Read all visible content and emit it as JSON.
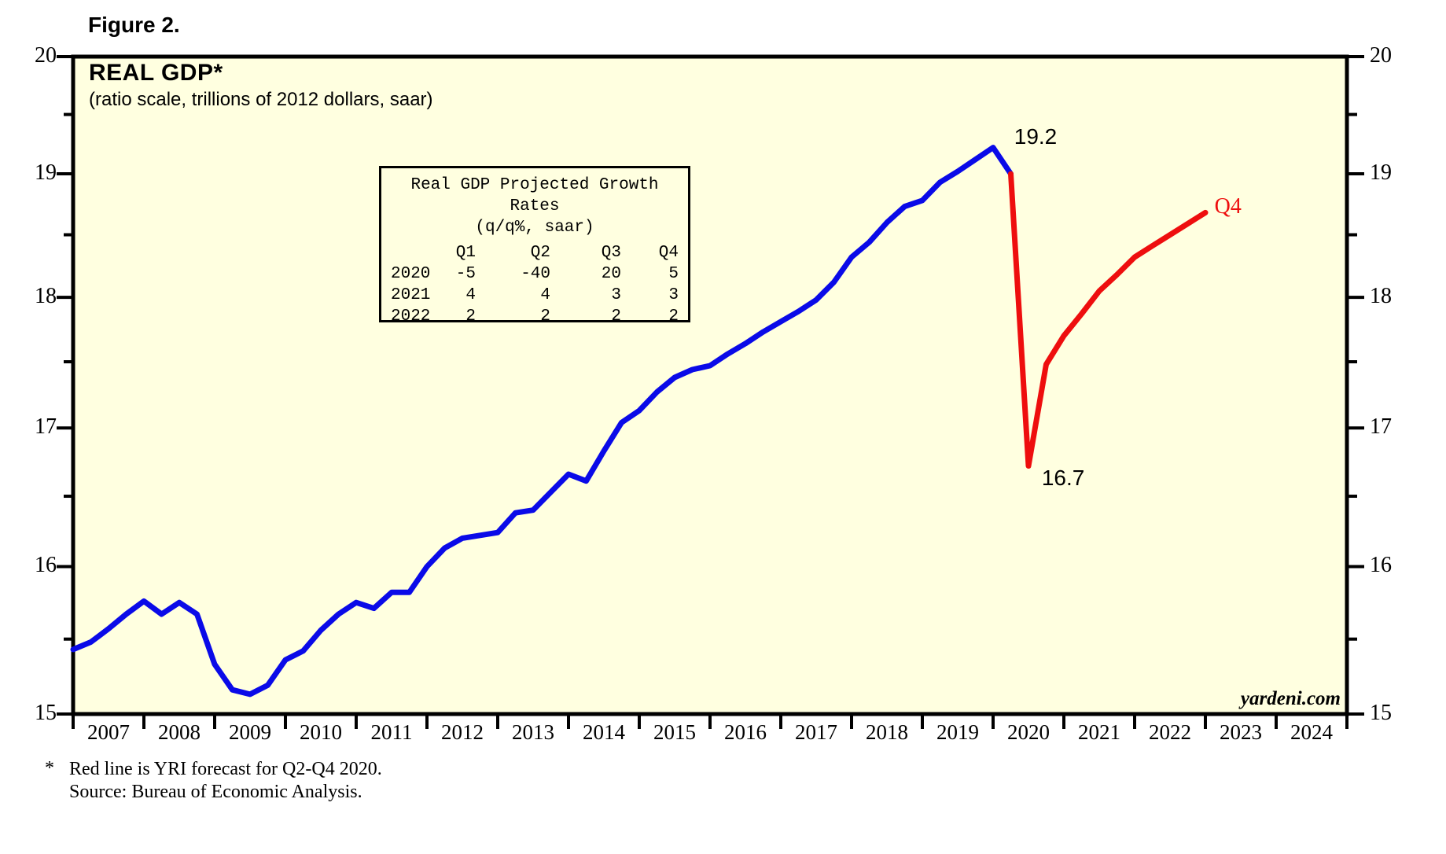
{
  "figure_label": "Figure 2.",
  "chart_title": "REAL GDP*",
  "chart_subtitle": "(ratio scale, trillions of 2012 dollars, saar)",
  "watermark": "yardeni.com",
  "footnote": {
    "marker": "*",
    "line1": "Red line is YRI forecast for Q2-Q4 2020.",
    "line2": "Source: Bureau of Economic Analysis."
  },
  "colors": {
    "background": "#FFFFE0",
    "actual_line": "#0A0AE8",
    "forecast_line": "#EE0E0E",
    "frame": "#000000",
    "text": "#000000"
  },
  "projection_table": {
    "title": "Real GDP Projected Growth Rates",
    "subtitle": "(q/q%, saar)",
    "header": [
      "",
      "Q1",
      "Q2",
      "Q3",
      "Q4"
    ],
    "rows": [
      [
        "2020",
        "-5",
        "-40",
        "20",
        "5"
      ],
      [
        "2021",
        "4",
        "4",
        "3",
        "3"
      ],
      [
        "2022",
        "2",
        "2",
        "2",
        "2"
      ]
    ]
  },
  "chart_data": {
    "type": "line",
    "title": "REAL GDP*",
    "ylabel": "trillions of 2012 dollars, saar",
    "y_scale": "log",
    "y_range": [
      15,
      20
    ],
    "y_ticks_major": [
      20,
      19,
      18,
      17,
      16,
      15
    ],
    "y_ticks_minor": [
      19.5,
      18.5,
      17.5,
      16.5,
      15.5
    ],
    "x_range": [
      2007,
      2025
    ],
    "x_tick_years": [
      2007,
      2008,
      2009,
      2010,
      2011,
      2012,
      2013,
      2014,
      2015,
      2016,
      2017,
      2018,
      2019,
      2020,
      2021,
      2022,
      2023,
      2024
    ],
    "grid": false,
    "series": [
      {
        "name": "Actual Real GDP",
        "color_key": "actual_line",
        "points": [
          [
            2007.0,
            15.43
          ],
          [
            2007.25,
            15.48
          ],
          [
            2007.5,
            15.57
          ],
          [
            2007.75,
            15.67
          ],
          [
            2008.0,
            15.76
          ],
          [
            2008.25,
            15.67
          ],
          [
            2008.5,
            15.75
          ],
          [
            2008.75,
            15.67
          ],
          [
            2009.0,
            15.33
          ],
          [
            2009.25,
            15.16
          ],
          [
            2009.5,
            15.13
          ],
          [
            2009.75,
            15.19
          ],
          [
            2010.0,
            15.36
          ],
          [
            2010.25,
            15.42
          ],
          [
            2010.5,
            15.56
          ],
          [
            2010.75,
            15.67
          ],
          [
            2011.0,
            15.75
          ],
          [
            2011.25,
            15.71
          ],
          [
            2011.5,
            15.82
          ],
          [
            2011.75,
            15.82
          ],
          [
            2012.0,
            16.0
          ],
          [
            2012.25,
            16.13
          ],
          [
            2012.5,
            16.2
          ],
          [
            2012.75,
            16.22
          ],
          [
            2013.0,
            16.24
          ],
          [
            2013.25,
            16.38
          ],
          [
            2013.5,
            16.4
          ],
          [
            2013.75,
            16.53
          ],
          [
            2014.0,
            16.66
          ],
          [
            2014.25,
            16.61
          ],
          [
            2014.5,
            16.83
          ],
          [
            2014.75,
            17.04
          ],
          [
            2015.0,
            17.13
          ],
          [
            2015.25,
            17.27
          ],
          [
            2015.5,
            17.38
          ],
          [
            2015.75,
            17.44
          ],
          [
            2016.0,
            17.47
          ],
          [
            2016.25,
            17.56
          ],
          [
            2016.5,
            17.64
          ],
          [
            2016.75,
            17.73
          ],
          [
            2017.0,
            17.81
          ],
          [
            2017.25,
            17.89
          ],
          [
            2017.5,
            17.98
          ],
          [
            2017.75,
            18.12
          ],
          [
            2018.0,
            18.32
          ],
          [
            2018.25,
            18.44
          ],
          [
            2018.5,
            18.6
          ],
          [
            2018.75,
            18.73
          ],
          [
            2019.0,
            18.78
          ],
          [
            2019.25,
            18.93
          ],
          [
            2019.5,
            19.02
          ],
          [
            2019.75,
            19.12
          ],
          [
            2020.0,
            19.22
          ],
          [
            2020.25,
            19.0
          ]
        ]
      },
      {
        "name": "YRI forecast for Q2-Q4 2020",
        "color_key": "forecast_line",
        "points": [
          [
            2020.25,
            19.0
          ],
          [
            2020.5,
            16.72
          ],
          [
            2020.75,
            17.48
          ],
          [
            2021.0,
            17.7
          ],
          [
            2021.25,
            17.87
          ],
          [
            2021.5,
            18.05
          ],
          [
            2021.75,
            18.18
          ],
          [
            2022.0,
            18.32
          ],
          [
            2022.25,
            18.41
          ],
          [
            2022.5,
            18.5
          ],
          [
            2022.75,
            18.59
          ],
          [
            2023.0,
            18.68
          ]
        ]
      }
    ],
    "annotations": [
      {
        "text": "19.2",
        "t": 2020.6,
        "v": 19.31,
        "color": "#000000",
        "serif": false
      },
      {
        "text": "16.7",
        "t": 2020.99,
        "v": 16.63,
        "color": "#000000",
        "serif": false
      },
      {
        "text": "Q4",
        "t": 2023.32,
        "v": 18.73,
        "color": "#EE0E0E",
        "serif": true
      }
    ]
  }
}
